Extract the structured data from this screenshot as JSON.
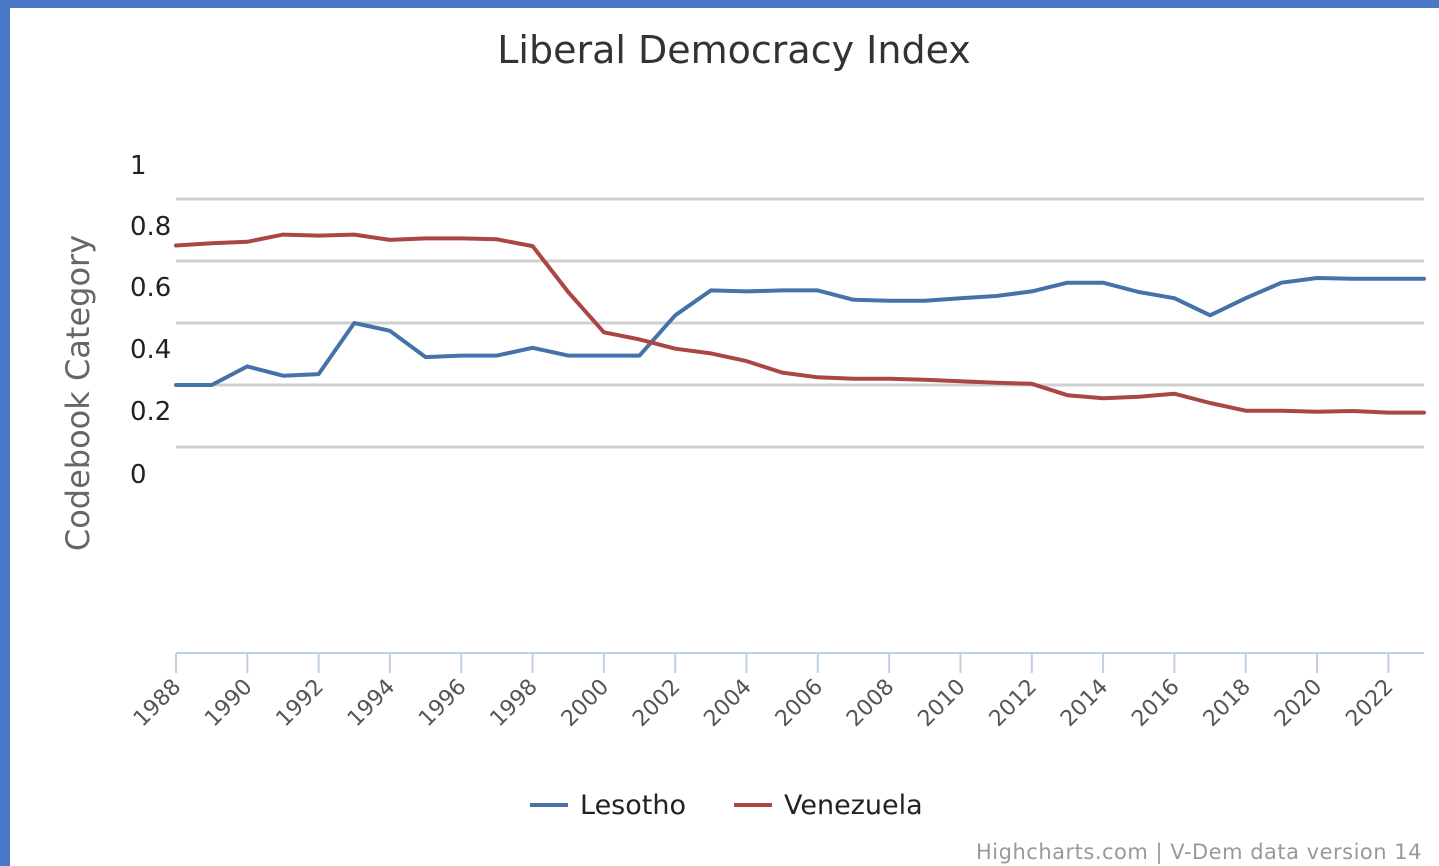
{
  "chart_data": {
    "type": "line",
    "title": "Liberal Democracy Index",
    "ylabel": "Codebook Category",
    "xlabel": "",
    "ylim": [
      0,
      1
    ],
    "y_ticks": [
      "0",
      "0.2",
      "0.4",
      "0.6",
      "0.8",
      "1"
    ],
    "x_ticks": [
      "1988",
      "1990",
      "1992",
      "1994",
      "1996",
      "1998",
      "2000",
      "2002",
      "2004",
      "2006",
      "2008",
      "2010",
      "2012",
      "2014",
      "2016",
      "2018",
      "2020",
      "2022"
    ],
    "x": [
      1988,
      1989,
      1990,
      1991,
      1992,
      1993,
      1994,
      1995,
      1996,
      1997,
      1998,
      1999,
      2000,
      2001,
      2002,
      2003,
      2004,
      2005,
      2006,
      2007,
      2008,
      2009,
      2010,
      2011,
      2012,
      2013,
      2014,
      2015,
      2016,
      2017,
      2018,
      2019,
      2020,
      2021,
      2022,
      2023
    ],
    "series": [
      {
        "name": "Lesotho",
        "color": "#4572a7",
        "values": [
          0.2,
          0.2,
          0.26,
          0.23,
          0.235,
          0.4,
          0.375,
          0.29,
          0.295,
          0.295,
          0.32,
          0.295,
          0.295,
          0.295,
          0.425,
          0.505,
          0.502,
          0.505,
          0.505,
          0.475,
          0.472,
          0.472,
          0.48,
          0.487,
          0.502,
          0.53,
          0.53,
          0.5,
          0.48,
          0.425,
          0.48,
          0.53,
          0.545,
          0.543,
          0.543,
          0.543
        ]
      },
      {
        "name": "Venezuela",
        "color": "#aa4643",
        "values": [
          0.65,
          0.657,
          0.662,
          0.685,
          0.682,
          0.685,
          0.668,
          0.673,
          0.673,
          0.67,
          0.648,
          0.5,
          0.37,
          0.347,
          0.317,
          0.302,
          0.277,
          0.24,
          0.225,
          0.22,
          0.22,
          0.217,
          0.212,
          0.207,
          0.204,
          0.167,
          0.157,
          0.162,
          0.172,
          0.142,
          0.117,
          0.117,
          0.114,
          0.116,
          0.111,
          0.111
        ]
      }
    ],
    "legend": "bottom-center",
    "grid": true,
    "credits": "Highcharts.com | V-Dem data version 14"
  }
}
